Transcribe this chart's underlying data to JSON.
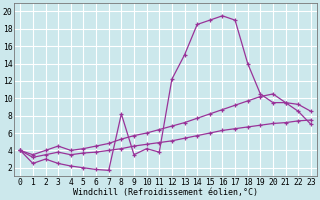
{
  "background_color": "#cce8ec",
  "line_color": "#993399",
  "grid_color": "#b0d8dc",
  "xlabel": "Windchill (Refroidissement éolien,°C)",
  "ylabel_ticks": [
    2,
    4,
    6,
    8,
    10,
    12,
    14,
    16,
    18,
    20
  ],
  "xlabel_ticks": [
    0,
    1,
    2,
    3,
    4,
    5,
    6,
    7,
    8,
    9,
    10,
    11,
    12,
    13,
    14,
    15,
    16,
    17,
    18,
    19,
    20,
    21,
    22,
    23
  ],
  "xlim": [
    -0.5,
    23.5
  ],
  "ylim": [
    1.0,
    21.0
  ],
  "line1_x": [
    0,
    1,
    2,
    3,
    4,
    5,
    6,
    7,
    8,
    9,
    10,
    11,
    12,
    13,
    14,
    15,
    16,
    17,
    18,
    19,
    20,
    21,
    22,
    23
  ],
  "line1_y": [
    4.0,
    2.5,
    3.0,
    2.5,
    2.2,
    2.0,
    1.8,
    1.7,
    8.2,
    3.5,
    4.2,
    3.8,
    12.2,
    15.0,
    18.5,
    19.0,
    19.5,
    19.0,
    14.0,
    10.5,
    9.5,
    9.5,
    8.5,
    7.0
  ],
  "line2_x": [
    0,
    1,
    2,
    3,
    4,
    5,
    6,
    7,
    8,
    9,
    10,
    11,
    12,
    13,
    14,
    15,
    16,
    17,
    18,
    19,
    20,
    21,
    22,
    23
  ],
  "line2_y": [
    4.0,
    3.2,
    3.5,
    3.8,
    3.5,
    3.7,
    3.8,
    4.0,
    4.2,
    4.5,
    4.7,
    4.9,
    5.1,
    5.4,
    5.7,
    6.0,
    6.3,
    6.5,
    6.7,
    6.9,
    7.1,
    7.2,
    7.4,
    7.5
  ],
  "line3_x": [
    0,
    1,
    2,
    3,
    4,
    5,
    6,
    7,
    8,
    9,
    10,
    11,
    12,
    13,
    14,
    15,
    16,
    17,
    18,
    19,
    20,
    21,
    22,
    23
  ],
  "line3_y": [
    4.0,
    3.5,
    4.0,
    4.5,
    4.0,
    4.2,
    4.5,
    4.8,
    5.3,
    5.7,
    6.0,
    6.4,
    6.8,
    7.2,
    7.7,
    8.2,
    8.7,
    9.2,
    9.7,
    10.2,
    10.5,
    9.5,
    9.3,
    8.5
  ],
  "xlabel_fontsize": 6.0,
  "tick_fontsize": 5.8,
  "lw": 0.9,
  "ms": 2.8
}
